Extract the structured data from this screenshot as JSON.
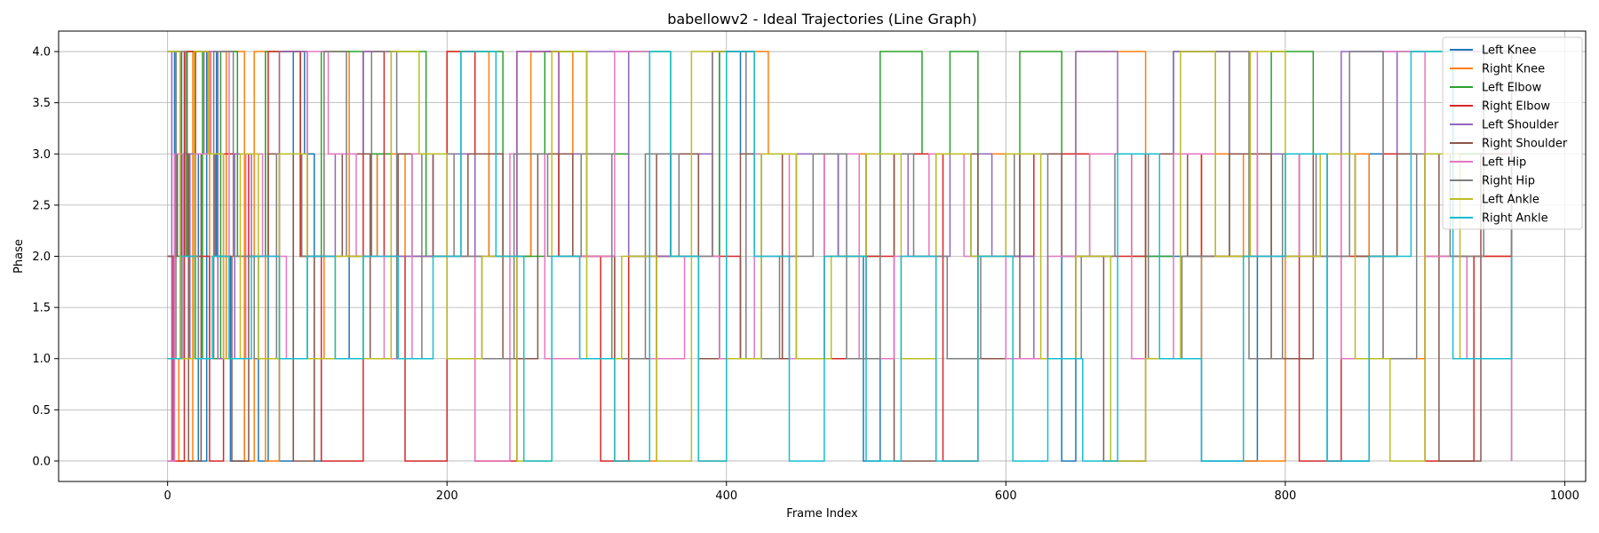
{
  "chart_data": {
    "type": "line",
    "title": "babellowv2 - Ideal Trajectories (Line Graph)",
    "xlabel": "Frame Index",
    "ylabel": "Phase",
    "xlim": [
      -78,
      1015
    ],
    "ylim": [
      -0.2,
      4.2
    ],
    "xticks": [
      0,
      200,
      400,
      600,
      800,
      1000
    ],
    "xtick_labels": [
      "0",
      "200",
      "400",
      "600",
      "800",
      "1000"
    ],
    "yticks": [
      0.0,
      0.5,
      1.0,
      1.5,
      2.0,
      2.5,
      3.0,
      3.5,
      4.0
    ],
    "ytick_labels": [
      "0.0",
      "0.5",
      "1.0",
      "1.5",
      "2.0",
      "2.5",
      "3.0",
      "3.5",
      "4.0"
    ],
    "grid": true,
    "legend_position": "top-right",
    "series": [
      {
        "name": "Left Knee",
        "color": "#1f77b4",
        "x": [
          0,
          5,
          10,
          15,
          22,
          28,
          35,
          45,
          55,
          65,
          72,
          80,
          90,
          98,
          105,
          110,
          130,
          150,
          175,
          200,
          230,
          260,
          280,
          300,
          330,
          360,
          380,
          395,
          410,
          425,
          450,
          480,
          498,
          510,
          540,
          575,
          600,
          640,
          650,
          660,
          700,
          740,
          780,
          810,
          830,
          860,
          900,
          930,
          962
        ],
        "y": [
          2,
          4,
          1,
          3,
          0,
          4,
          2,
          0,
          2,
          0,
          3,
          0,
          4,
          3,
          0,
          1,
          2,
          3,
          2,
          3,
          2,
          3,
          2,
          3,
          2,
          3,
          1,
          4,
          3,
          1,
          3,
          2,
          0,
          3,
          3,
          2,
          3,
          0,
          2,
          3,
          2,
          0,
          2,
          3,
          0,
          3,
          2,
          1,
          2
        ]
      },
      {
        "name": "Right Knee",
        "color": "#ff7f0e",
        "x": [
          0,
          8,
          18,
          30,
          42,
          55,
          62,
          70,
          80,
          100,
          112,
          130,
          150,
          170,
          200,
          230,
          260,
          290,
          320,
          350,
          380,
          400,
          430,
          460,
          500,
          550,
          600,
          650,
          690,
          700,
          740,
          770,
          800,
          830,
          860,
          900,
          962
        ],
        "y": [
          1,
          0,
          4,
          1,
          4,
          0,
          4,
          0,
          4,
          1,
          4,
          2,
          3,
          2,
          4,
          2,
          4,
          2,
          0,
          2,
          0,
          4,
          3,
          3,
          3,
          3,
          3,
          4,
          4,
          1,
          3,
          0,
          2,
          3,
          1,
          2,
          2
        ]
      },
      {
        "name": "Left Elbow",
        "color": "#2ca02c",
        "x": [
          0,
          6,
          14,
          25,
          38,
          50,
          70,
          95,
          110,
          140,
          160,
          185,
          210,
          240,
          270,
          300,
          330,
          360,
          380,
          395,
          420,
          450,
          480,
          510,
          540,
          560,
          580,
          610,
          640,
          660,
          690,
          720,
          760,
          790,
          820,
          850,
          880,
          920,
          962
        ],
        "y": [
          4,
          2,
          4,
          1,
          4,
          2,
          4,
          2,
          4,
          3,
          4,
          2,
          4,
          2,
          4,
          3,
          4,
          2,
          1,
          4,
          3,
          3,
          2,
          4,
          3,
          4,
          2,
          4,
          2,
          3,
          2,
          4,
          2,
          4,
          3,
          2,
          4,
          3,
          2
        ]
      },
      {
        "name": "Right Elbow",
        "color": "#d62728",
        "x": [
          0,
          4,
          12,
          20,
          30,
          40,
          58,
          72,
          95,
          110,
          140,
          155,
          170,
          200,
          220,
          250,
          280,
          310,
          330,
          360,
          390,
          410,
          440,
          470,
          500,
          520,
          555,
          580,
          620,
          660,
          700,
          740,
          780,
          810,
          840,
          870,
          900,
          935,
          962
        ],
        "y": [
          2,
          0,
          4,
          2,
          0,
          3,
          2,
          4,
          2,
          0,
          4,
          2,
          0,
          4,
          0,
          4,
          2,
          0,
          2,
          3,
          2,
          1,
          3,
          1,
          2,
          3,
          0,
          2,
          3,
          2,
          3,
          2,
          3,
          0,
          2,
          3,
          0,
          2,
          2
        ]
      },
      {
        "name": "Left Shoulder",
        "color": "#9467bd",
        "x": [
          0,
          3,
          9,
          16,
          26,
          36,
          48,
          60,
          80,
          100,
          120,
          140,
          160,
          190,
          220,
          250,
          280,
          300,
          330,
          360,
          390,
          420,
          450,
          480,
          500,
          530,
          560,
          590,
          620,
          650,
          680,
          720,
          760,
          800,
          840,
          880,
          920,
          962
        ],
        "y": [
          0,
          4,
          1,
          3,
          4,
          1,
          3,
          2,
          4,
          2,
          3,
          4,
          2,
          3,
          2,
          4,
          3,
          4,
          2,
          3,
          4,
          2,
          3,
          2,
          3,
          2,
          3,
          2,
          1,
          4,
          3,
          4,
          3,
          2,
          4,
          3,
          4,
          2
        ]
      },
      {
        "name": "Right Shoulder",
        "color": "#8c564b",
        "x": [
          0,
          7,
          15,
          24,
          34,
          46,
          58,
          72,
          90,
          105,
          125,
          145,
          165,
          190,
          215,
          240,
          265,
          290,
          320,
          350,
          380,
          410,
          440,
          470,
          500,
          520,
          550,
          580,
          610,
          640,
          670,
          700,
          730,
          760,
          790,
          820,
          850,
          880,
          910,
          940,
          962
        ],
        "y": [
          2,
          3,
          0,
          3,
          2,
          0,
          2,
          3,
          0,
          2,
          3,
          1,
          3,
          2,
          3,
          1,
          3,
          2,
          1,
          3,
          1,
          3,
          1,
          2,
          3,
          0,
          3,
          1,
          3,
          2,
          0,
          3,
          2,
          3,
          1,
          3,
          2,
          3,
          0,
          3,
          0
        ]
      },
      {
        "name": "Left Hip",
        "color": "#e377c2",
        "x": [
          0,
          5,
          11,
          20,
          31,
          44,
          56,
          68,
          85,
          100,
          115,
          135,
          155,
          175,
          200,
          220,
          245,
          270,
          295,
          320,
          345,
          370,
          395,
          420,
          445,
          470,
          495,
          520,
          545,
          570,
          600,
          630,
          660,
          690,
          720,
          750,
          780,
          810,
          840,
          870,
          900,
          930,
          962
        ],
        "y": [
          0,
          3,
          1,
          3,
          4,
          1,
          3,
          2,
          1,
          4,
          3,
          2,
          1,
          3,
          2,
          0,
          3,
          1,
          2,
          4,
          1,
          2,
          1,
          3,
          1,
          3,
          1,
          2,
          3,
          2,
          1,
          2,
          3,
          1,
          3,
          4,
          2,
          3,
          1,
          4,
          2,
          1,
          0
        ]
      },
      {
        "name": "Right Hip",
        "color": "#7f7f7f",
        "x": [
          0,
          6,
          13,
          22,
          33,
          47,
          62,
          78,
          96,
          112,
          128,
          146,
          164,
          182,
          205,
          225,
          248,
          272,
          296,
          318,
          342,
          366,
          390,
          414,
          438,
          462,
          486,
          510,
          534,
          558,
          582,
          606,
          630,
          654,
          678,
          702,
          726,
          750,
          774,
          798,
          822,
          846,
          870,
          894,
          918,
          942,
          962
        ],
        "y": [
          1,
          4,
          2,
          1,
          4,
          2,
          1,
          3,
          2,
          4,
          2,
          4,
          1,
          3,
          2,
          1,
          3,
          2,
          3,
          1,
          3,
          2,
          4,
          1,
          2,
          3,
          1,
          3,
          2,
          1,
          2,
          3,
          1,
          2,
          3,
          1,
          2,
          4,
          1,
          3,
          2,
          4,
          1,
          3,
          2,
          4,
          2
        ]
      },
      {
        "name": "Left Ankle",
        "color": "#bcbd22",
        "x": [
          0,
          9,
          19,
          29,
          40,
          52,
          65,
          80,
          100,
          120,
          140,
          160,
          180,
          200,
          225,
          250,
          275,
          300,
          325,
          350,
          375,
          400,
          425,
          450,
          475,
          500,
          525,
          550,
          575,
          600,
          625,
          650,
          675,
          700,
          725,
          750,
          775,
          800,
          825,
          850,
          875,
          900,
          925,
          962
        ],
        "y": [
          4,
          1,
          4,
          3,
          1,
          3,
          1,
          3,
          1,
          2,
          1,
          4,
          3,
          1,
          2,
          0,
          4,
          1,
          2,
          0,
          4,
          1,
          3,
          1,
          2,
          3,
          1,
          3,
          2,
          3,
          1,
          2,
          0,
          1,
          4,
          2,
          4,
          2,
          3,
          1,
          0,
          3,
          1,
          1
        ]
      },
      {
        "name": "Right Ankle",
        "color": "#17becf",
        "x": [
          0,
          10,
          20,
          32,
          44,
          60,
          80,
          100,
          120,
          140,
          165,
          190,
          210,
          235,
          255,
          275,
          295,
          320,
          345,
          360,
          380,
          400,
          420,
          445,
          470,
          500,
          525,
          550,
          580,
          605,
          630,
          655,
          680,
          710,
          740,
          770,
          800,
          830,
          860,
          890,
          920,
          962
        ],
        "y": [
          1,
          2,
          1,
          2,
          1,
          2,
          1,
          2,
          1,
          2,
          1,
          2,
          4,
          2,
          0,
          2,
          1,
          0,
          4,
          2,
          0,
          4,
          2,
          0,
          2,
          0,
          2,
          0,
          2,
          0,
          1,
          0,
          3,
          1,
          0,
          2,
          3,
          0,
          2,
          4,
          1,
          2
        ]
      }
    ]
  }
}
